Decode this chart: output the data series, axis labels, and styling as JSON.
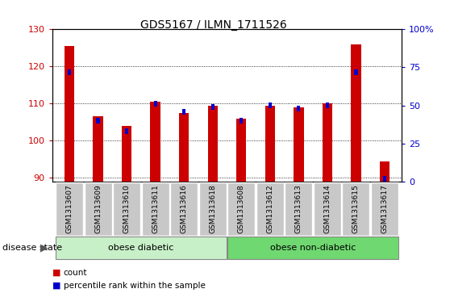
{
  "title": "GDS5167 / ILMN_1711526",
  "samples": [
    "GSM1313607",
    "GSM1313609",
    "GSM1313610",
    "GSM1313611",
    "GSM1313616",
    "GSM1313618",
    "GSM1313608",
    "GSM1313612",
    "GSM1313613",
    "GSM1313614",
    "GSM1313615",
    "GSM1313617"
  ],
  "count_values": [
    125.5,
    106.5,
    104.0,
    110.5,
    107.5,
    109.5,
    106.0,
    109.5,
    109.0,
    110.0,
    126.0,
    94.5
  ],
  "percentile_values": [
    72,
    40,
    33,
    51,
    46,
    49,
    40,
    50,
    48,
    50,
    72,
    2
  ],
  "ylim_left": [
    89,
    130
  ],
  "ylim_right": [
    0,
    100
  ],
  "yticks_left": [
    90,
    100,
    110,
    120,
    130
  ],
  "yticks_right": [
    0,
    25,
    50,
    75,
    100
  ],
  "group1_label": "obese diabetic",
  "group2_label": "obese non-diabetic",
  "group1_count": 6,
  "group2_count": 6,
  "bar_color_red": "#cc0000",
  "bar_color_blue": "#0000cc",
  "group_bg_color_light": "#c8f0c8",
  "group_bg_color_mid": "#70d870",
  "tick_label_bg": "#c8c8c8",
  "legend_count_label": "count",
  "legend_pct_label": "percentile rank within the sample",
  "disease_state_label": "disease state",
  "bar_width": 0.35,
  "blue_bar_width": 0.12,
  "blue_bar_height": 1.5
}
